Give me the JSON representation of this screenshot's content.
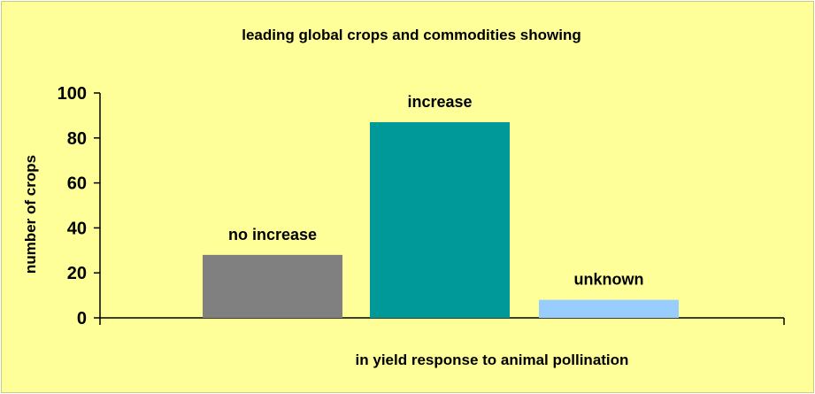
{
  "chart_data": {
    "type": "bar",
    "title": "leading global crops and commodities showing",
    "xlabel": "in yield response to animal pollination",
    "ylabel": "number of crops",
    "categories": [
      "no increase",
      "increase",
      "unknown"
    ],
    "values": [
      28,
      87,
      8
    ],
    "ylim": [
      0,
      100
    ],
    "yticks": [
      "0",
      "20",
      "40",
      "60",
      "80",
      "100"
    ],
    "grid": false,
    "legend": "none",
    "colors": {
      "background": "#ffff99",
      "bars": [
        "#808080",
        "#009999",
        "#99ccff"
      ],
      "axis": "#000000"
    }
  }
}
